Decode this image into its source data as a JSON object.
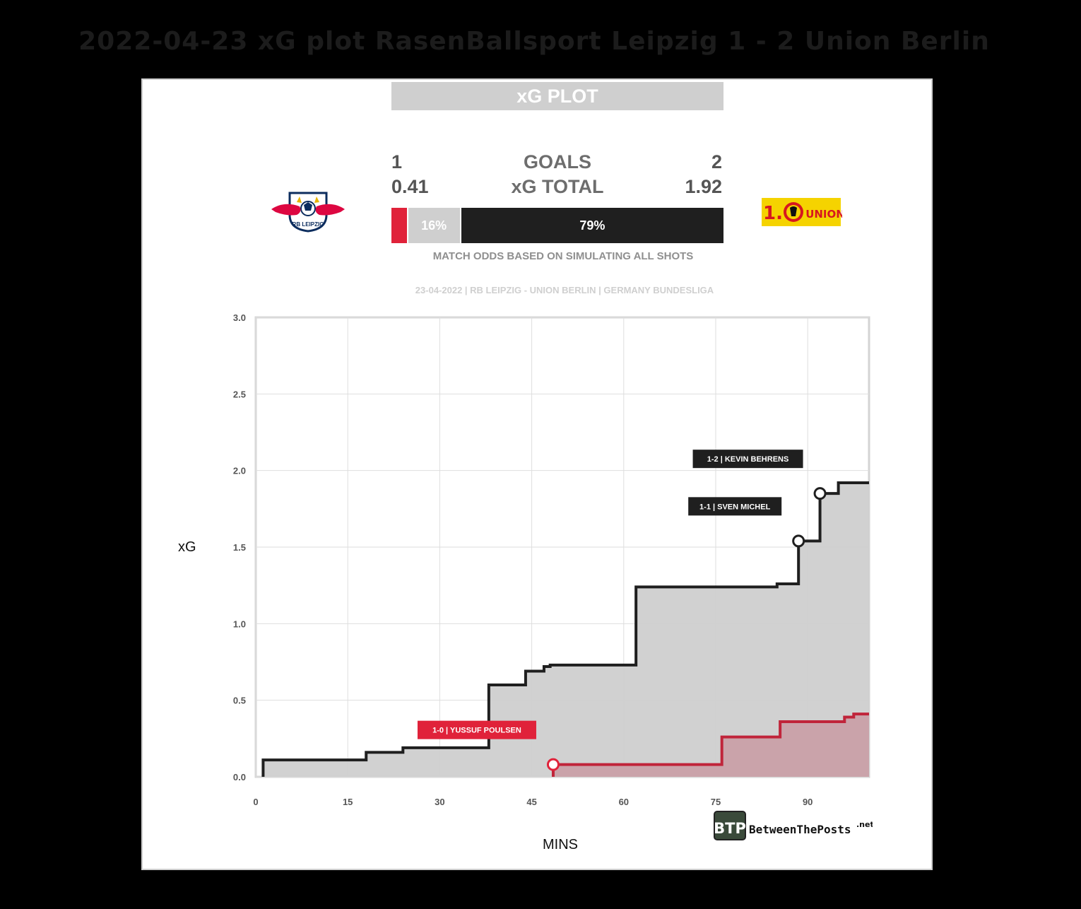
{
  "page_title": "2022-04-23 xG plot RasenBallsport Leipzig 1 - 2 Union Berlin",
  "banner": "xG PLOT",
  "goals_label": "GOALS",
  "xg_total_label": "xG TOTAL",
  "home": {
    "goals": "1",
    "xg": "0.41",
    "logo_text": "RB LEIPZIG",
    "color": "#e0223a"
  },
  "away": {
    "goals": "2",
    "xg": "1.92",
    "logo_text": "UNION",
    "color": "#1f1f1f"
  },
  "odds": {
    "home_win": 5,
    "draw": "16%",
    "away_win": "79%",
    "draw_value": 16,
    "away_value": 79
  },
  "odds_caption": "MATCH ODDS BASED ON SIMULATING ALL SHOTS",
  "match_info": "23-04-2022 | RB LEIPZIG - UNION BERLIN | GERMANY BUNDESLIGA",
  "brand": {
    "badge": "BTP",
    "name": "BetweenThePosts",
    "suffix": ".net"
  },
  "chart_data": {
    "type": "line",
    "step": true,
    "xlabel": "MINS",
    "ylabel": "xG",
    "xlim": [
      0,
      100
    ],
    "ylim": [
      0,
      3.0
    ],
    "xticks": [
      0,
      15,
      30,
      45,
      60,
      75,
      90
    ],
    "yticks": [
      "0.0",
      "0.5",
      "1.0",
      "1.5",
      "2.0",
      "2.5",
      "3.0"
    ],
    "grid": true,
    "series": [
      {
        "name": "Union Berlin",
        "color": "#1f1f1f",
        "fill": "#cfcfcf",
        "points": [
          [
            1.2,
            0.0
          ],
          [
            1.2,
            0.11
          ],
          [
            18,
            0.11
          ],
          [
            18,
            0.16
          ],
          [
            24,
            0.16
          ],
          [
            24,
            0.19
          ],
          [
            38,
            0.19
          ],
          [
            38,
            0.6
          ],
          [
            44,
            0.6
          ],
          [
            44,
            0.69
          ],
          [
            47,
            0.69
          ],
          [
            47,
            0.72
          ],
          [
            48,
            0.72
          ],
          [
            48,
            0.73
          ],
          [
            62,
            0.73
          ],
          [
            62,
            1.24
          ],
          [
            85,
            1.24
          ],
          [
            85,
            1.26
          ],
          [
            88.5,
            1.26
          ],
          [
            88.5,
            1.54
          ],
          [
            92,
            1.54
          ],
          [
            92,
            1.85
          ],
          [
            95,
            1.85
          ],
          [
            95,
            1.92
          ],
          [
            100,
            1.92
          ]
        ]
      },
      {
        "name": "RasenBallsport Leipzig",
        "color": "#c0243a",
        "fill": "#c9a0a8",
        "points": [
          [
            48.5,
            0.0
          ],
          [
            48.5,
            0.08
          ],
          [
            76,
            0.08
          ],
          [
            76,
            0.26
          ],
          [
            85.5,
            0.26
          ],
          [
            85.5,
            0.36
          ],
          [
            96,
            0.36
          ],
          [
            96,
            0.39
          ],
          [
            97.5,
            0.39
          ],
          [
            97.5,
            0.41
          ],
          [
            100,
            0.41
          ]
        ]
      }
    ],
    "annotations": [
      {
        "label": "1-0 | YUSSUF POULSEN",
        "x": 48.5,
        "y": 0.08,
        "team": "home"
      },
      {
        "label": "1-1 | SVEN MICHEL",
        "x": 88.5,
        "y": 1.54,
        "team": "away"
      },
      {
        "label": "1-2 | KEVIN BEHRENS",
        "x": 92,
        "y": 1.85,
        "team": "away"
      }
    ]
  }
}
